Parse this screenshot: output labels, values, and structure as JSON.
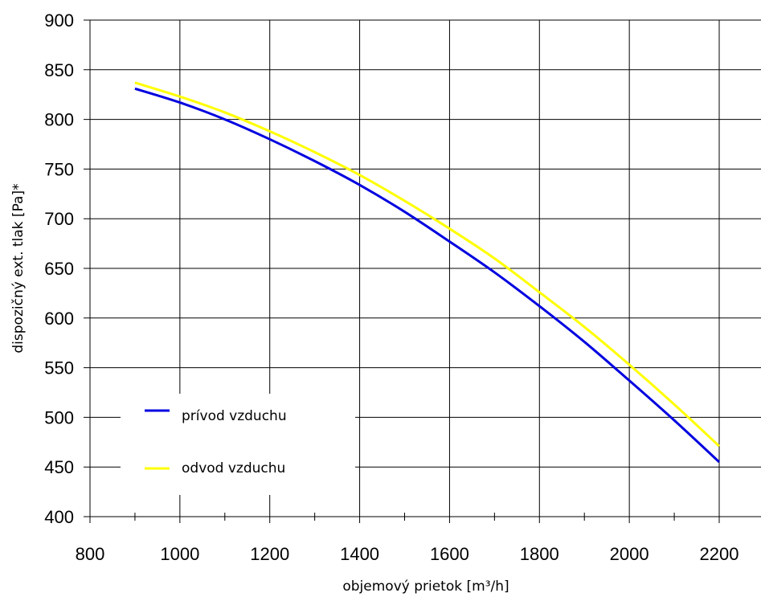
{
  "chart_data": {
    "type": "line",
    "xlabel": "objemový prietok [m³/h]",
    "ylabel": "dispozičný ext. tlak [Pa]*",
    "xlim": [
      800,
      2300
    ],
    "ylim": [
      400,
      900
    ],
    "xticks": [
      "800",
      "1000",
      "1200",
      "1400",
      "1600",
      "1800",
      "2000",
      "2200"
    ],
    "yticks": [
      "400",
      "450",
      "500",
      "550",
      "600",
      "650",
      "700",
      "750",
      "800",
      "850",
      "900"
    ],
    "grid": true,
    "legend_position": "bottom-left",
    "series": [
      {
        "name": "prívod vzduchu",
        "color": "#0000e0",
        "x": [
          900,
          1000,
          1100,
          1200,
          1300,
          1400,
          1500,
          1600,
          1700,
          1800,
          1900,
          2000,
          2100,
          2200
        ],
        "y": [
          831,
          817,
          800,
          780,
          758,
          734,
          707,
          677,
          646,
          612,
          576,
          537,
          497,
          455
        ]
      },
      {
        "name": "odvod vzduchu",
        "color": "#ffff00",
        "x": [
          900,
          1000,
          1100,
          1200,
          1300,
          1400,
          1500,
          1600,
          1700,
          1800,
          1900,
          2000,
          2100,
          2200
        ],
        "y": [
          837,
          823,
          807,
          788,
          767,
          744,
          718,
          690,
          660,
          626,
          591,
          553,
          513,
          471
        ]
      }
    ]
  }
}
